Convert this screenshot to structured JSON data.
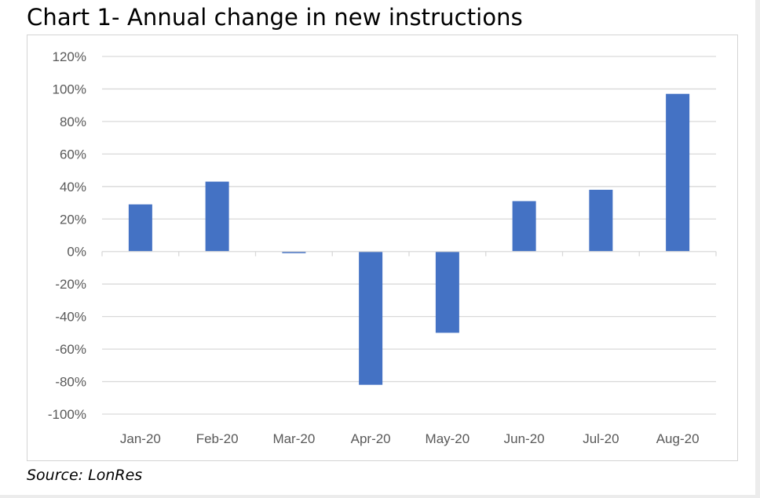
{
  "chart_data": {
    "type": "bar",
    "title": "Chart 1- Annual change in new instructions",
    "source": "Source: LonRes",
    "categories": [
      "Jan-20",
      "Feb-20",
      "Mar-20",
      "Apr-20",
      "May-20",
      "Jun-20",
      "Jul-20",
      "Aug-20"
    ],
    "values": [
      29,
      43,
      -1,
      -82,
      -50,
      31,
      38,
      97
    ],
    "value_unit": "%",
    "xlabel": "",
    "ylabel": "",
    "ylim": [
      -100,
      120
    ],
    "ytick_step": 20,
    "yticks": [
      "120%",
      "100%",
      "80%",
      "60%",
      "40%",
      "20%",
      "0%",
      "-20%",
      "-40%",
      "-60%",
      "-80%",
      "-100%"
    ],
    "grid": true,
    "legend": "none",
    "bar_color": "#4472c4",
    "grid_color": "#d9d9d9"
  }
}
